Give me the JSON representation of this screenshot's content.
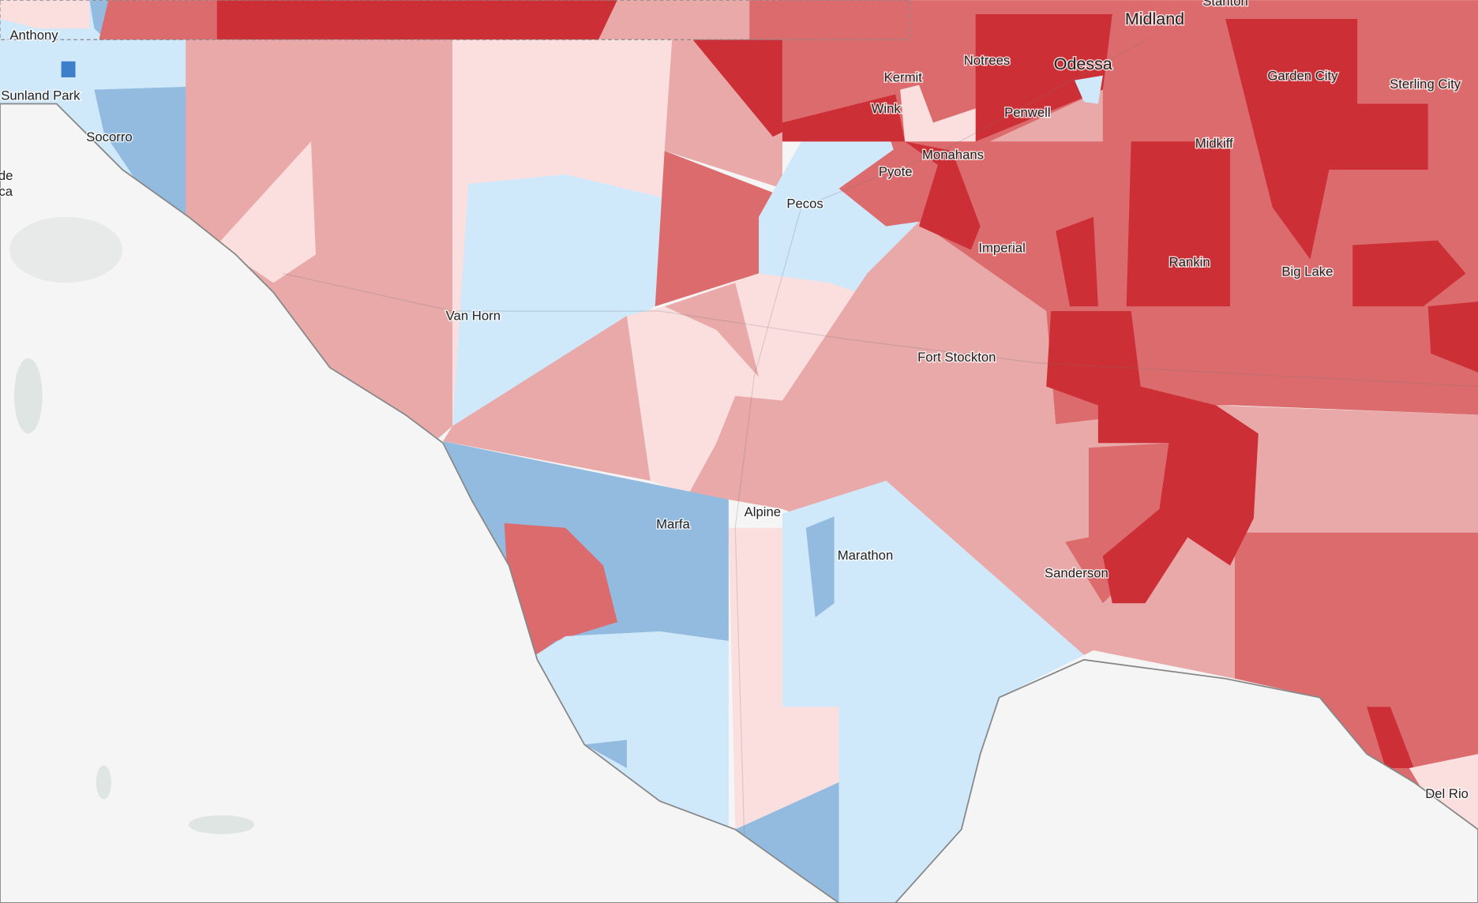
{
  "places": [
    {
      "label": "Anthony"
    },
    {
      "label": "Sunland Park"
    },
    {
      "label": "Socorro"
    },
    {
      "label": "de"
    },
    {
      "label": "ca"
    },
    {
      "label": "Stanton"
    },
    {
      "label": "Midland"
    },
    {
      "label": "Odessa"
    },
    {
      "label": "Notrees"
    },
    {
      "label": "Kermit"
    },
    {
      "label": "Wink"
    },
    {
      "label": "Penwell"
    },
    {
      "label": "Garden City"
    },
    {
      "label": "Sterling City"
    },
    {
      "label": "Midkiff"
    },
    {
      "label": "Monahans"
    },
    {
      "label": "Pyote"
    },
    {
      "label": "Pecos"
    },
    {
      "label": "Imperial"
    },
    {
      "label": "Rankin"
    },
    {
      "label": "Big Lake"
    },
    {
      "label": "Van Horn"
    },
    {
      "label": "Fort Stockton"
    },
    {
      "label": "Marfa"
    },
    {
      "label": "Alpine"
    },
    {
      "label": "Marathon"
    },
    {
      "label": "Sanderson"
    },
    {
      "label": "Del Rio"
    }
  ]
}
